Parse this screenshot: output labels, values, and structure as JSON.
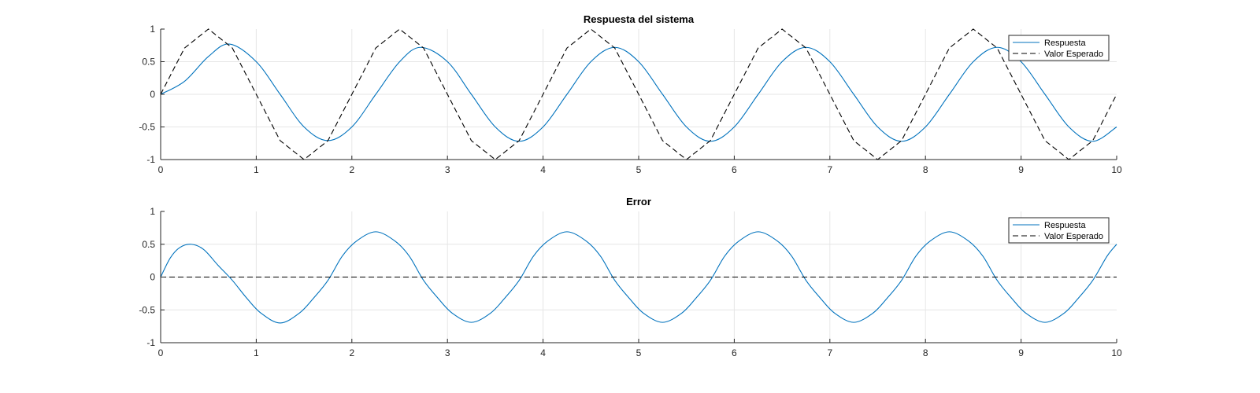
{
  "figure": {
    "background": "#ffffff"
  },
  "chart_data": [
    {
      "type": "line",
      "title": "Respuesta del sistema",
      "xlabel": "",
      "ylabel": "",
      "xlim": [
        0,
        10
      ],
      "ylim": [
        -1,
        1
      ],
      "x_ticks": [
        0,
        1,
        2,
        3,
        4,
        5,
        6,
        7,
        8,
        9,
        10
      ],
      "x_tick_labels": [
        "0",
        "1",
        "2",
        "3",
        "4",
        "5",
        "6",
        "7",
        "8",
        "9",
        "10"
      ],
      "y_ticks": [
        -1,
        -0.5,
        0,
        0.5,
        1
      ],
      "y_tick_labels": [
        "-1",
        "-0.5",
        "0",
        "0.5",
        "1"
      ],
      "grid": true,
      "legend_position": "top-right",
      "series": [
        {
          "name": "Respuesta",
          "color": "#0072BD",
          "style": "solid",
          "x": [
            0,
            0.25,
            0.5,
            0.72,
            1,
            1.25,
            1.5,
            1.75,
            2,
            2.25,
            2.5,
            2.72,
            3,
            3.25,
            3.5,
            3.75,
            4,
            4.25,
            4.5,
            4.75,
            5,
            5.25,
            5.5,
            5.75,
            6,
            6.25,
            6.5,
            6.75,
            7,
            7.25,
            7.5,
            7.75,
            8,
            8.25,
            8.5,
            8.75,
            9,
            9.25,
            9.5,
            9.75,
            10
          ],
          "y": [
            0,
            0.2,
            0.58,
            0.77,
            0.5,
            0,
            -0.5,
            -0.71,
            -0.5,
            0,
            0.5,
            0.72,
            0.5,
            0,
            -0.5,
            -0.72,
            -0.5,
            0,
            0.5,
            0.72,
            0.5,
            0,
            -0.5,
            -0.72,
            -0.5,
            0,
            0.5,
            0.72,
            0.5,
            0,
            -0.5,
            -0.72,
            -0.5,
            0,
            0.5,
            0.72,
            0.5,
            0,
            -0.5,
            -0.72,
            -0.5
          ]
        },
        {
          "name": "Valor Esperado",
          "color": "#000000",
          "style": "dashed",
          "x": [
            0,
            0.25,
            0.5,
            0.75,
            1,
            1.25,
            1.5,
            1.75,
            2,
            2.25,
            2.5,
            2.75,
            3,
            3.25,
            3.5,
            3.75,
            4,
            4.25,
            4.5,
            4.75,
            5,
            5.25,
            5.5,
            5.75,
            6,
            6.25,
            6.5,
            6.75,
            7,
            7.25,
            7.5,
            7.75,
            8,
            8.25,
            8.5,
            8.75,
            9,
            9.25,
            9.5,
            9.75,
            10
          ],
          "y": [
            0,
            0.71,
            1,
            0.71,
            0,
            -0.71,
            -1,
            -0.71,
            0,
            0.71,
            1,
            0.71,
            0,
            -0.71,
            -1,
            -0.71,
            0,
            0.71,
            1,
            0.71,
            0,
            -0.71,
            -1,
            -0.71,
            0,
            0.71,
            1,
            0.71,
            0,
            -0.71,
            -1,
            -0.71,
            0,
            0.71,
            1,
            0.71,
            0,
            -0.71,
            -1,
            -0.71,
            0
          ]
        }
      ]
    },
    {
      "type": "line",
      "title": "Error",
      "xlabel": "",
      "ylabel": "",
      "xlim": [
        0,
        10
      ],
      "ylim": [
        -1,
        1
      ],
      "x_ticks": [
        0,
        1,
        2,
        3,
        4,
        5,
        6,
        7,
        8,
        9,
        10
      ],
      "x_tick_labels": [
        "0",
        "1",
        "2",
        "3",
        "4",
        "5",
        "6",
        "7",
        "8",
        "9",
        "10"
      ],
      "y_ticks": [
        -1,
        -0.5,
        0,
        0.5,
        1
      ],
      "y_tick_labels": [
        "-1",
        "-0.5",
        "0",
        "0.5",
        "1"
      ],
      "grid": true,
      "legend_position": "top-right",
      "series": [
        {
          "name": "Respuesta",
          "color": "#0072BD",
          "style": "solid",
          "x": [
            0,
            0.1,
            0.2,
            0.32,
            0.45,
            0.6,
            0.75,
            0.9,
            1.05,
            1.25,
            1.45,
            1.6,
            1.75,
            1.9,
            2.05,
            2.25,
            2.45,
            2.6,
            2.75,
            2.9,
            3.05,
            3.25,
            3.45,
            3.6,
            3.75,
            3.9,
            4.05,
            4.25,
            4.45,
            4.6,
            4.75,
            4.9,
            5.05,
            5.25,
            5.45,
            5.6,
            5.75,
            5.9,
            6.05,
            6.25,
            6.45,
            6.6,
            6.75,
            6.9,
            7.05,
            7.25,
            7.45,
            7.6,
            7.75,
            7.9,
            8.05,
            8.25,
            8.45,
            8.6,
            8.75,
            8.9,
            9.05,
            9.25,
            9.45,
            9.6,
            9.75,
            9.9,
            10
          ],
          "y": [
            0,
            0.29,
            0.45,
            0.5,
            0.42,
            0.18,
            -0.05,
            -0.32,
            -0.55,
            -0.7,
            -0.55,
            -0.32,
            -0.05,
            0.32,
            0.55,
            0.69,
            0.55,
            0.32,
            -0.05,
            -0.32,
            -0.55,
            -0.69,
            -0.55,
            -0.32,
            -0.05,
            0.32,
            0.55,
            0.69,
            0.55,
            0.32,
            -0.05,
            -0.32,
            -0.55,
            -0.69,
            -0.55,
            -0.32,
            -0.05,
            0.32,
            0.55,
            0.69,
            0.55,
            0.32,
            -0.05,
            -0.32,
            -0.55,
            -0.69,
            -0.55,
            -0.32,
            -0.05,
            0.32,
            0.55,
            0.69,
            0.55,
            0.32,
            -0.05,
            -0.32,
            -0.55,
            -0.69,
            -0.55,
            -0.32,
            -0.05,
            0.32,
            0.5
          ]
        },
        {
          "name": "Valor Esperado",
          "color": "#000000",
          "style": "dashed",
          "x": [
            0,
            10
          ],
          "y": [
            0,
            0
          ]
        }
      ]
    }
  ]
}
